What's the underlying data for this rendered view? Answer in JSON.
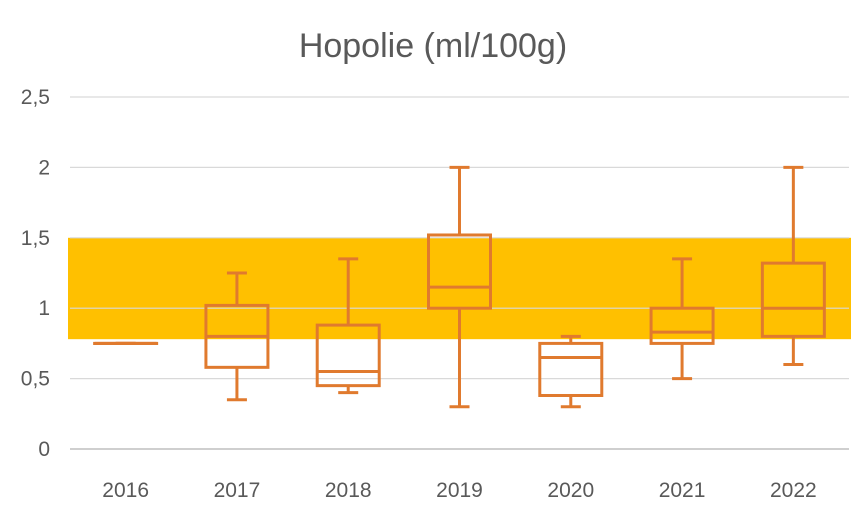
{
  "chart_data": {
    "type": "boxplot",
    "title": "Hopolie (ml/100g)",
    "xlabel": "",
    "ylabel": "",
    "ylim": [
      0,
      2.5
    ],
    "yticks": [
      "0",
      "0,5",
      "1",
      "1,5",
      "2",
      "2,5"
    ],
    "ytick_values": [
      0,
      0.5,
      1,
      1.5,
      2,
      2.5
    ],
    "grid": true,
    "legend": "none",
    "reference_band": {
      "from": 0.78,
      "to": 1.5,
      "color": "#FFC000"
    },
    "series_color": "#E07A2E",
    "categories": [
      "2016",
      "2017",
      "2018",
      "2019",
      "2020",
      "2021",
      "2022"
    ],
    "boxes": [
      {
        "min": 0.75,
        "q1": 0.75,
        "median": 0.75,
        "q3": 0.75,
        "max": 0.75
      },
      {
        "min": 0.35,
        "q1": 0.58,
        "median": 0.8,
        "q3": 1.02,
        "max": 1.25
      },
      {
        "min": 0.4,
        "q1": 0.45,
        "median": 0.55,
        "q3": 0.88,
        "max": 1.35
      },
      {
        "min": 0.3,
        "q1": 1.0,
        "median": 1.15,
        "q3": 1.52,
        "max": 2.0
      },
      {
        "min": 0.3,
        "q1": 0.38,
        "median": 0.65,
        "q3": 0.75,
        "max": 0.8
      },
      {
        "min": 0.5,
        "q1": 0.75,
        "median": 0.83,
        "q3": 1.0,
        "max": 1.35
      },
      {
        "min": 0.6,
        "q1": 0.8,
        "median": 1.0,
        "q3": 1.32,
        "max": 2.0
      }
    ]
  }
}
